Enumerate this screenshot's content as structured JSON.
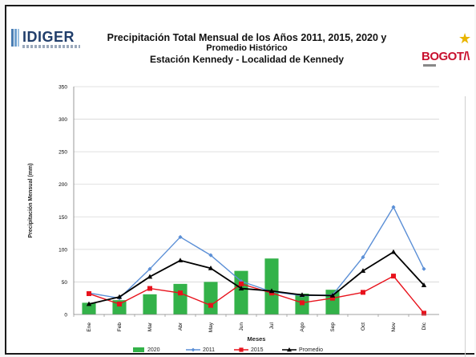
{
  "header": {
    "logo_left": "IDIGER",
    "title_line1": "Precipitación Total Mensual de los Años 2011, 2015, 2020 y",
    "title_line2": "Promedio Histórico",
    "title_line3": "Estación Kennedy - Localidad de Kennedy",
    "logo_right": "BOGOT/\\"
  },
  "colors": {
    "s2020": "#33b249",
    "s2011": "#5b8fd6",
    "s2015": "#e8121c",
    "promedio": "#000000",
    "grid": "#d6d6d6"
  },
  "chart_data": {
    "type": "bar+line",
    "xlabel": "Meses",
    "ylabel": "Precipitación Mensual (mm)",
    "ylim": [
      0,
      350
    ],
    "yticks": [
      "0",
      "50",
      "100",
      "150",
      "200",
      "250",
      "300",
      "350"
    ],
    "categories": [
      "Ene",
      "Feb",
      "Mar",
      "Abr",
      "May",
      "Jun",
      "Jul",
      "Ago",
      "Sep",
      "Oct",
      "Nov",
      "Dic"
    ],
    "grid": true,
    "legend_position": "bottom",
    "series": [
      {
        "name": "2020",
        "kind": "bar",
        "values": [
          18,
          22,
          31,
          47,
          50,
          67,
          86,
          32,
          38,
          null,
          null,
          null
        ]
      },
      {
        "name": "2011",
        "kind": "line",
        "values": [
          33,
          25,
          70,
          119,
          91,
          51,
          35,
          29,
          30,
          88,
          165,
          70
        ]
      },
      {
        "name": "2015",
        "kind": "line",
        "values": [
          32,
          16,
          40,
          33,
          14,
          47,
          33,
          18,
          25,
          34,
          59,
          2
        ]
      },
      {
        "name": "Promedio",
        "kind": "line",
        "values": [
          16,
          27,
          58,
          83,
          71,
          40,
          36,
          30,
          29,
          67,
          96,
          45
        ]
      }
    ]
  }
}
